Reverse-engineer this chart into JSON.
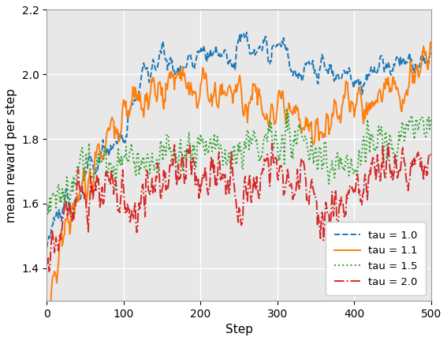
{
  "title": "",
  "xlabel": "Step",
  "ylabel": "mean reward per step",
  "xlim": [
    0,
    500
  ],
  "ylim": [
    1.3,
    2.2
  ],
  "yticks": [
    1.4,
    1.6,
    1.8,
    2.0,
    2.2
  ],
  "xticks": [
    0,
    100,
    200,
    300,
    400,
    500
  ],
  "background_color": "#e8e8e8",
  "grid_color": "white",
  "legend_labels": [
    "tau = 1.0",
    "tau = 1.1",
    "tau = 1.5",
    "tau = 2.0"
  ],
  "line_colors": [
    "#1f77b4",
    "#ff7f0e",
    "#2ca02c",
    "#d62728"
  ],
  "line_styles": [
    "--",
    "-",
    ":",
    "-."
  ],
  "figsize": [
    5.67,
    4.32
  ],
  "dpi": 100
}
